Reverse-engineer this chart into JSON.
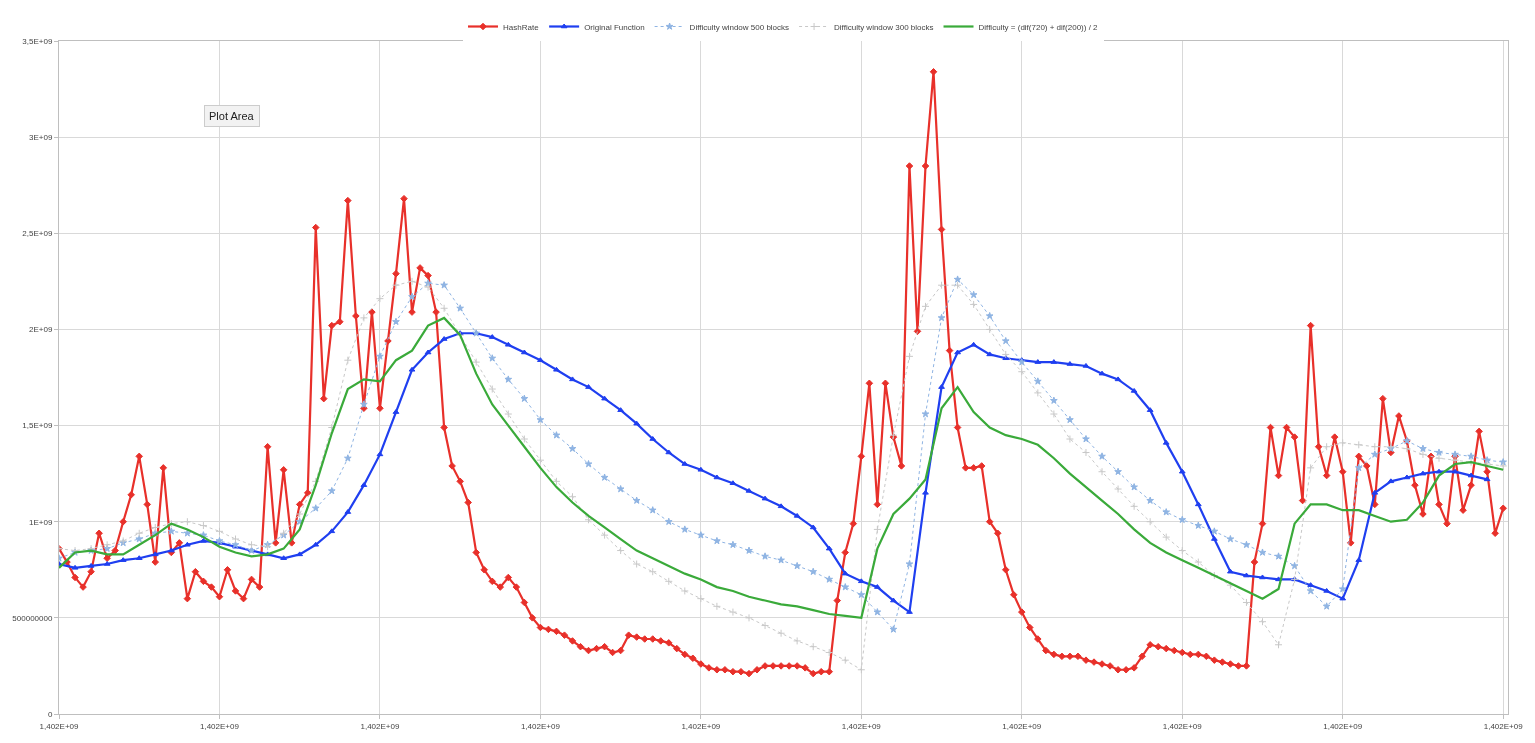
{
  "chart_data": {
    "type": "line",
    "annotations": [
      "Plot Area"
    ],
    "categories": [
      "1,402E+09",
      null,
      null,
      null,
      null,
      null,
      null,
      null,
      null,
      null,
      null,
      null,
      null,
      null,
      null,
      null,
      null,
      null,
      null,
      null,
      "1,402E+09",
      null,
      null,
      null,
      null,
      null,
      null,
      null,
      null,
      null,
      null,
      null,
      null,
      null,
      null,
      null,
      null,
      null,
      null,
      null,
      "1,402E+09",
      null,
      null,
      null,
      null,
      null,
      null,
      null,
      null,
      null,
      null,
      null,
      null,
      null,
      null,
      null,
      null,
      null,
      null,
      null,
      "1,402E+09",
      null,
      null,
      null,
      null,
      null,
      null,
      null,
      null,
      null,
      null,
      null,
      null,
      null,
      null,
      null,
      null,
      null,
      null,
      null,
      "1,402E+09",
      null,
      null,
      null,
      null,
      null,
      null,
      null,
      null,
      null,
      null,
      null,
      null,
      null,
      null,
      null,
      null,
      null,
      null,
      null,
      "1,402E+09",
      null,
      null,
      null,
      null,
      null,
      null,
      null,
      null,
      null,
      null,
      null,
      null,
      null,
      null,
      null,
      null,
      null,
      null,
      null,
      "1,402E+09",
      null,
      null,
      null,
      null,
      null,
      null,
      null,
      null,
      null,
      null,
      null,
      null,
      null,
      null,
      null,
      null,
      null,
      null,
      null,
      "1,402E+09",
      null,
      null,
      null,
      null,
      null,
      null,
      null,
      null,
      null,
      null,
      null,
      null,
      null,
      null,
      null,
      null,
      null,
      null,
      null,
      "1,402E+09",
      null,
      null,
      null,
      null,
      null,
      null,
      null,
      null,
      null,
      null,
      null,
      null,
      null,
      null,
      null,
      null,
      null,
      null,
      null,
      "1,402E+09"
    ],
    "ylim": [
      0,
      3500000000.0
    ],
    "yticks": [
      0,
      500000000,
      {
        "value": 1000000000.0,
        "label": "1E+09"
      },
      {
        "value": 1500000000.0,
        "label": "1,5E+09"
      },
      {
        "value": 2000000000.0,
        "label": "2E+09"
      },
      {
        "value": 2500000000.0,
        "label": "2,5E+09"
      },
      {
        "value": 3000000000.0,
        "label": "3E+09"
      },
      {
        "value": 3500000000.0,
        "label": "3,5E+09"
      }
    ],
    "grid": true,
    "legend": "top",
    "series": [
      {
        "name": "HashRate",
        "color": "#e8302a",
        "marker": "diamond",
        "line_style": "solid",
        "values": [
          860000000.0,
          790000000.0,
          710000000.0,
          660000000.0,
          740000000.0,
          940000000.0,
          810000000.0,
          850000000.0,
          1000000000.0,
          1140000000.0,
          1340000000.0,
          1090000000.0,
          790000000.0,
          1280000000.0,
          840000000.0,
          890000000.0,
          600000000.0,
          740000000.0,
          690000000.0,
          660000000.0,
          610000000.0,
          750000000.0,
          640000000.0,
          600000000.0,
          700000000.0,
          660000000.0,
          1390000000.0,
          890000000.0,
          1270000000.0,
          890000000.0,
          1090000000.0,
          1150000000.0,
          2530000000.0,
          1640000000.0,
          2020000000.0,
          2040000000.0,
          2670000000.0,
          2070000000.0,
          1590000000.0,
          2090000000.0,
          1590000000.0,
          1940000000.0,
          2290000000.0,
          2680000000.0,
          2090000000.0,
          2320000000.0,
          2280000000.0,
          2090000000.0,
          1490000000.0,
          1290000000.0,
          1210000000.0,
          1100000000.0,
          840000000.0,
          750000000.0,
          690000000.0,
          660000000.0,
          710000000.0,
          660000000.0,
          580000000.0,
          500000000.0,
          450000000.0,
          440000000.0,
          430000000.0,
          410000000.0,
          380000000.0,
          350000000.0,
          330000000.0,
          340000000.0,
          350000000.0,
          320000000.0,
          330000000.0,
          410000000.0,
          400000000.0,
          390000000.0,
          390000000.0,
          380000000.0,
          370000000.0,
          340000000.0,
          310000000.0,
          290000000.0,
          260000000.0,
          240000000.0,
          230000000.0,
          230000000.0,
          220000000.0,
          220000000.0,
          210000000.0,
          230000000.0,
          250000000.0,
          250000000.0,
          250000000.0,
          250000000.0,
          250000000.0,
          240000000.0,
          210000000.0,
          220000000.0,
          220000000.0,
          590000000.0,
          840000000.0,
          990000000.0,
          1340000000.0,
          1720000000.0,
          1090000000.0,
          1720000000.0,
          1440000000.0,
          1290000000.0,
          2850000000.0,
          1990000000.0,
          2850000000.0,
          3340000000.0,
          2520000000.0,
          1890000000.0,
          1490000000.0,
          1280000000.0,
          1280000000.0,
          1290000000.0,
          1000000000.0,
          940000000.0,
          750000000.0,
          620000000.0,
          530000000.0,
          450000000.0,
          390000000.0,
          330000000.0,
          310000000.0,
          300000000.0,
          300000000.0,
          300000000.0,
          280000000.0,
          270000000.0,
          260000000.0,
          250000000.0,
          230000000.0,
          230000000.0,
          240000000.0,
          300000000.0,
          360000000.0,
          350000000.0,
          340000000.0,
          330000000.0,
          320000000.0,
          310000000.0,
          310000000.0,
          300000000.0,
          280000000.0,
          270000000.0,
          260000000.0,
          250000000.0,
          250000000.0,
          790000000.0,
          990000000.0,
          1490000000.0,
          1240000000.0,
          1490000000.0,
          1440000000.0,
          1110000000.0,
          2020000000.0,
          1390000000.0,
          1240000000.0,
          1440000000.0,
          1260000000.0,
          890000000.0,
          1340000000.0,
          1290000000.0,
          1090000000.0,
          1640000000.0,
          1360000000.0,
          1550000000.0,
          1420000000.0,
          1190000000.0,
          1040000000.0,
          1340000000.0,
          1090000000.0,
          990000000.0,
          1340000000.0,
          1060000000.0,
          1190000000.0,
          1470000000.0,
          1260000000.0,
          940000000.0,
          1070000000.0
        ]
      },
      {
        "name": "Original Function",
        "color": "#1f3ff0",
        "marker": "triangle",
        "line_style": "solid",
        "values": [
          780000000.0,
          null,
          760000000.0,
          null,
          770000000.0,
          null,
          780000000.0,
          null,
          800000000.0,
          null,
          810000000.0,
          null,
          830000000.0,
          null,
          850000000.0,
          null,
          880000000.0,
          null,
          900000000.0,
          null,
          890000000.0,
          null,
          870000000.0,
          null,
          850000000.0,
          null,
          830000000.0,
          null,
          810000000.0,
          null,
          830000000.0,
          null,
          880000000.0,
          null,
          950000000.0,
          null,
          1050000000.0,
          null,
          1190000000.0,
          null,
          1350000000.0,
          null,
          1570000000.0,
          null,
          1790000000.0,
          null,
          1880000000.0,
          null,
          1950000000.0,
          null,
          1980000000.0,
          null,
          1980000000.0,
          null,
          1960000000.0,
          null,
          1920000000.0,
          null,
          1880000000.0,
          null,
          1840000000.0,
          null,
          1790000000.0,
          null,
          1740000000.0,
          null,
          1700000000.0,
          null,
          1640000000.0,
          null,
          1580000000.0,
          null,
          1510000000.0,
          null,
          1430000000.0,
          null,
          1360000000.0,
          null,
          1300000000.0,
          null,
          1270000000.0,
          null,
          1230000000.0,
          null,
          1200000000.0,
          null,
          1160000000.0,
          null,
          1120000000.0,
          null,
          1080000000.0,
          null,
          1030000000.0,
          null,
          970000000.0,
          null,
          860000000.0,
          null,
          730000000.0,
          null,
          690000000.0,
          null,
          660000000.0,
          null,
          590000000.0,
          null,
          530000000.0,
          null,
          1150000000.0,
          null,
          1700000000.0,
          null,
          1880000000.0,
          null,
          1920000000.0,
          null,
          1870000000.0,
          null,
          1850000000.0,
          null,
          1840000000.0,
          null,
          1830000000.0,
          null,
          1830000000.0,
          null,
          1820000000.0,
          null,
          1810000000.0,
          null,
          1770000000.0,
          null,
          1740000000.0,
          null,
          1680000000.0,
          null,
          1580000000.0,
          null,
          1410000000.0,
          null,
          1260000000.0,
          null,
          1090000000.0,
          null,
          910000000.0,
          null,
          740000000.0,
          null,
          720000000.0,
          null,
          710000000.0,
          null,
          700000000.0,
          null,
          700000000.0,
          null,
          670000000.0,
          null,
          640000000.0,
          null,
          600000000.0,
          null,
          800000000.0,
          null,
          1150000000.0,
          null,
          1210000000.0,
          null,
          1230000000.0,
          null,
          1250000000.0,
          null,
          1260000000.0,
          null,
          1260000000.0,
          null,
          1240000000.0,
          null,
          1220000000.0,
          null,
          null
        ]
      },
      {
        "name": "Difficulty window 500 blocks",
        "color": "#8fb4e3",
        "marker": "star",
        "line_style": "dotted",
        "values": [
          810000000.0,
          null,
          840000000.0,
          null,
          850000000.0,
          null,
          860000000.0,
          null,
          890000000.0,
          null,
          910000000.0,
          null,
          940000000.0,
          null,
          950000000.0,
          null,
          940000000.0,
          null,
          930000000.0,
          null,
          900000000.0,
          null,
          880000000.0,
          null,
          850000000.0,
          null,
          880000000.0,
          null,
          930000000.0,
          null,
          1000000000.0,
          null,
          1070000000.0,
          null,
          1160000000.0,
          null,
          1330000000.0,
          null,
          1610000000.0,
          null,
          1860000000.0,
          null,
          2040000000.0,
          null,
          2170000000.0,
          null,
          2240000000.0,
          null,
          2230000000.0,
          null,
          2110000000.0,
          null,
          1980000000.0,
          null,
          1850000000.0,
          null,
          1740000000.0,
          null,
          1640000000.0,
          null,
          1530000000.0,
          null,
          1450000000.0,
          null,
          1380000000.0,
          null,
          1300000000.0,
          null,
          1230000000.0,
          null,
          1170000000.0,
          null,
          1110000000.0,
          null,
          1060000000.0,
          null,
          1000000000.0,
          null,
          960000000.0,
          null,
          930000000.0,
          null,
          900000000.0,
          null,
          880000000.0,
          null,
          850000000.0,
          null,
          820000000.0,
          null,
          800000000.0,
          null,
          770000000.0,
          null,
          740000000.0,
          null,
          700000000.0,
          null,
          660000000.0,
          null,
          620000000.0,
          null,
          530000000.0,
          null,
          440000000.0,
          null,
          780000000.0,
          null,
          1560000000.0,
          null,
          2060000000.0,
          null,
          2260000000.0,
          null,
          2180000000.0,
          null,
          2070000000.0,
          null,
          1940000000.0,
          null,
          1830000000.0,
          null,
          1730000000.0,
          null,
          1630000000.0,
          null,
          1530000000.0,
          null,
          1430000000.0,
          null,
          1340000000.0,
          null,
          1260000000.0,
          null,
          1180000000.0,
          null,
          1110000000.0,
          null,
          1050000000.0,
          null,
          1010000000.0,
          null,
          980000000.0,
          null,
          950000000.0,
          null,
          910000000.0,
          null,
          880000000.0,
          null,
          840000000.0,
          null,
          820000000.0,
          null,
          770000000.0,
          null,
          640000000.0,
          null,
          560000000.0,
          null,
          650000000.0,
          null,
          1280000000.0,
          null,
          1350000000.0,
          null,
          1380000000.0,
          null,
          1420000000.0,
          null,
          1380000000.0,
          null,
          1360000000.0,
          null,
          1350000000.0,
          null,
          1340000000.0,
          null,
          1320000000.0,
          null,
          1310000000.0
        ]
      },
      {
        "name": "Difficulty window 300 blocks",
        "color": "#c8c8c8",
        "marker": "cross",
        "line_style": "dotted",
        "values": [
          860000000.0,
          null,
          850000000.0,
          null,
          860000000.0,
          null,
          880000000.0,
          null,
          900000000.0,
          null,
          940000000.0,
          null,
          970000000.0,
          null,
          990000000.0,
          null,
          1000000000.0,
          null,
          980000000.0,
          null,
          950000000.0,
          null,
          910000000.0,
          null,
          880000000.0,
          null,
          870000000.0,
          null,
          940000000.0,
          null,
          1040000000.0,
          null,
          1210000000.0,
          null,
          1490000000.0,
          null,
          1840000000.0,
          null,
          2060000000.0,
          null,
          2160000000.0,
          null,
          2230000000.0,
          null,
          2250000000.0,
          null,
          2220000000.0,
          null,
          2110000000.0,
          null,
          1970000000.0,
          null,
          1830000000.0,
          null,
          1690000000.0,
          null,
          1560000000.0,
          null,
          1430000000.0,
          null,
          1320000000.0,
          null,
          1210000000.0,
          null,
          1130000000.0,
          null,
          1010000000.0,
          null,
          930000000.0,
          null,
          850000000.0,
          null,
          780000000.0,
          null,
          740000000.0,
          null,
          690000000.0,
          null,
          640000000.0,
          null,
          600000000.0,
          null,
          560000000.0,
          null,
          530000000.0,
          null,
          500000000.0,
          null,
          460000000.0,
          null,
          420000000.0,
          null,
          380000000.0,
          null,
          350000000.0,
          null,
          320000000.0,
          null,
          280000000.0,
          null,
          230000000.0,
          null,
          960000000.0,
          null,
          1450000000.0,
          null,
          1860000000.0,
          null,
          2120000000.0,
          null,
          2230000000.0,
          null,
          2230000000.0,
          null,
          2130000000.0,
          null,
          2000000000.0,
          null,
          1870000000.0,
          null,
          1780000000.0,
          null,
          1670000000.0,
          null,
          1560000000.0,
          null,
          1430000000.0,
          null,
          1360000000.0,
          null,
          1260000000.0,
          null,
          1170000000.0,
          null,
          1080000000.0,
          null,
          1000000000.0,
          null,
          920000000.0,
          null,
          850000000.0,
          null,
          790000000.0,
          null,
          720000000.0,
          null,
          670000000.0,
          null,
          580000000.0,
          null,
          480000000.0,
          null,
          360000000.0,
          null,
          700000000.0,
          null,
          1280000000.0,
          null,
          1390000000.0,
          null,
          1410000000.0,
          null,
          1400000000.0,
          null,
          1390000000.0,
          null,
          1390000000.0,
          null,
          1380000000.0,
          null,
          1350000000.0,
          null,
          1330000000.0,
          null,
          1320000000.0,
          null,
          1310000000.0,
          null,
          1300000000.0,
          null,
          1290000000.0
        ]
      },
      {
        "name": "Difficulty = (dif(720) + dif(200)) / 2",
        "color": "#3aaa3a",
        "marker": "none",
        "line_style": "solid",
        "values": [
          760000000.0,
          null,
          840000000.0,
          null,
          850000000.0,
          null,
          830000000.0,
          null,
          830000000.0,
          null,
          880000000.0,
          null,
          930000000.0,
          null,
          990000000.0,
          null,
          960000000.0,
          null,
          920000000.0,
          null,
          870000000.0,
          null,
          840000000.0,
          null,
          820000000.0,
          null,
          830000000.0,
          null,
          860000000.0,
          null,
          960000000.0,
          null,
          1190000000.0,
          null,
          1460000000.0,
          null,
          1690000000.0,
          null,
          1740000000.0,
          null,
          1730000000.0,
          null,
          1840000000.0,
          null,
          1890000000.0,
          null,
          2020000000.0,
          null,
          2060000000.0,
          null,
          1970000000.0,
          null,
          1770000000.0,
          null,
          1610000000.0,
          null,
          1500000000.0,
          null,
          1390000000.0,
          null,
          1280000000.0,
          null,
          1180000000.0,
          null,
          1100000000.0,
          null,
          1030000000.0,
          null,
          970000000.0,
          null,
          910000000.0,
          null,
          850000000.0,
          null,
          810000000.0,
          null,
          770000000.0,
          null,
          730000000.0,
          null,
          700000000.0,
          null,
          660000000.0,
          null,
          640000000.0,
          null,
          610000000.0,
          null,
          590000000.0,
          null,
          570000000.0,
          null,
          560000000.0,
          null,
          540000000.0,
          null,
          520000000.0,
          null,
          510000000.0,
          null,
          500000000.0,
          null,
          860000000.0,
          null,
          1040000000.0,
          null,
          1120000000.0,
          null,
          1220000000.0,
          null,
          1590000000.0,
          null,
          1700000000.0,
          null,
          1570000000.0,
          null,
          1490000000.0,
          null,
          1450000000.0,
          null,
          1430000000.0,
          null,
          1400000000.0,
          null,
          1330000000.0,
          null,
          1250000000.0,
          null,
          1180000000.0,
          null,
          1110000000.0,
          null,
          1040000000.0,
          null,
          960000000.0,
          null,
          890000000.0,
          null,
          840000000.0,
          null,
          800000000.0,
          null,
          760000000.0,
          null,
          720000000.0,
          null,
          680000000.0,
          null,
          640000000.0,
          null,
          600000000.0,
          null,
          650000000.0,
          null,
          990000000.0,
          null,
          1090000000.0,
          null,
          1090000000.0,
          null,
          1060000000.0,
          null,
          1060000000.0,
          null,
          1030000000.0,
          null,
          1000000000.0,
          null,
          1010000000.0,
          null,
          1100000000.0,
          null,
          1240000000.0,
          null,
          1300000000.0,
          null,
          1310000000.0,
          null,
          1290000000.0,
          null,
          1270000000.0
        ]
      }
    ]
  }
}
